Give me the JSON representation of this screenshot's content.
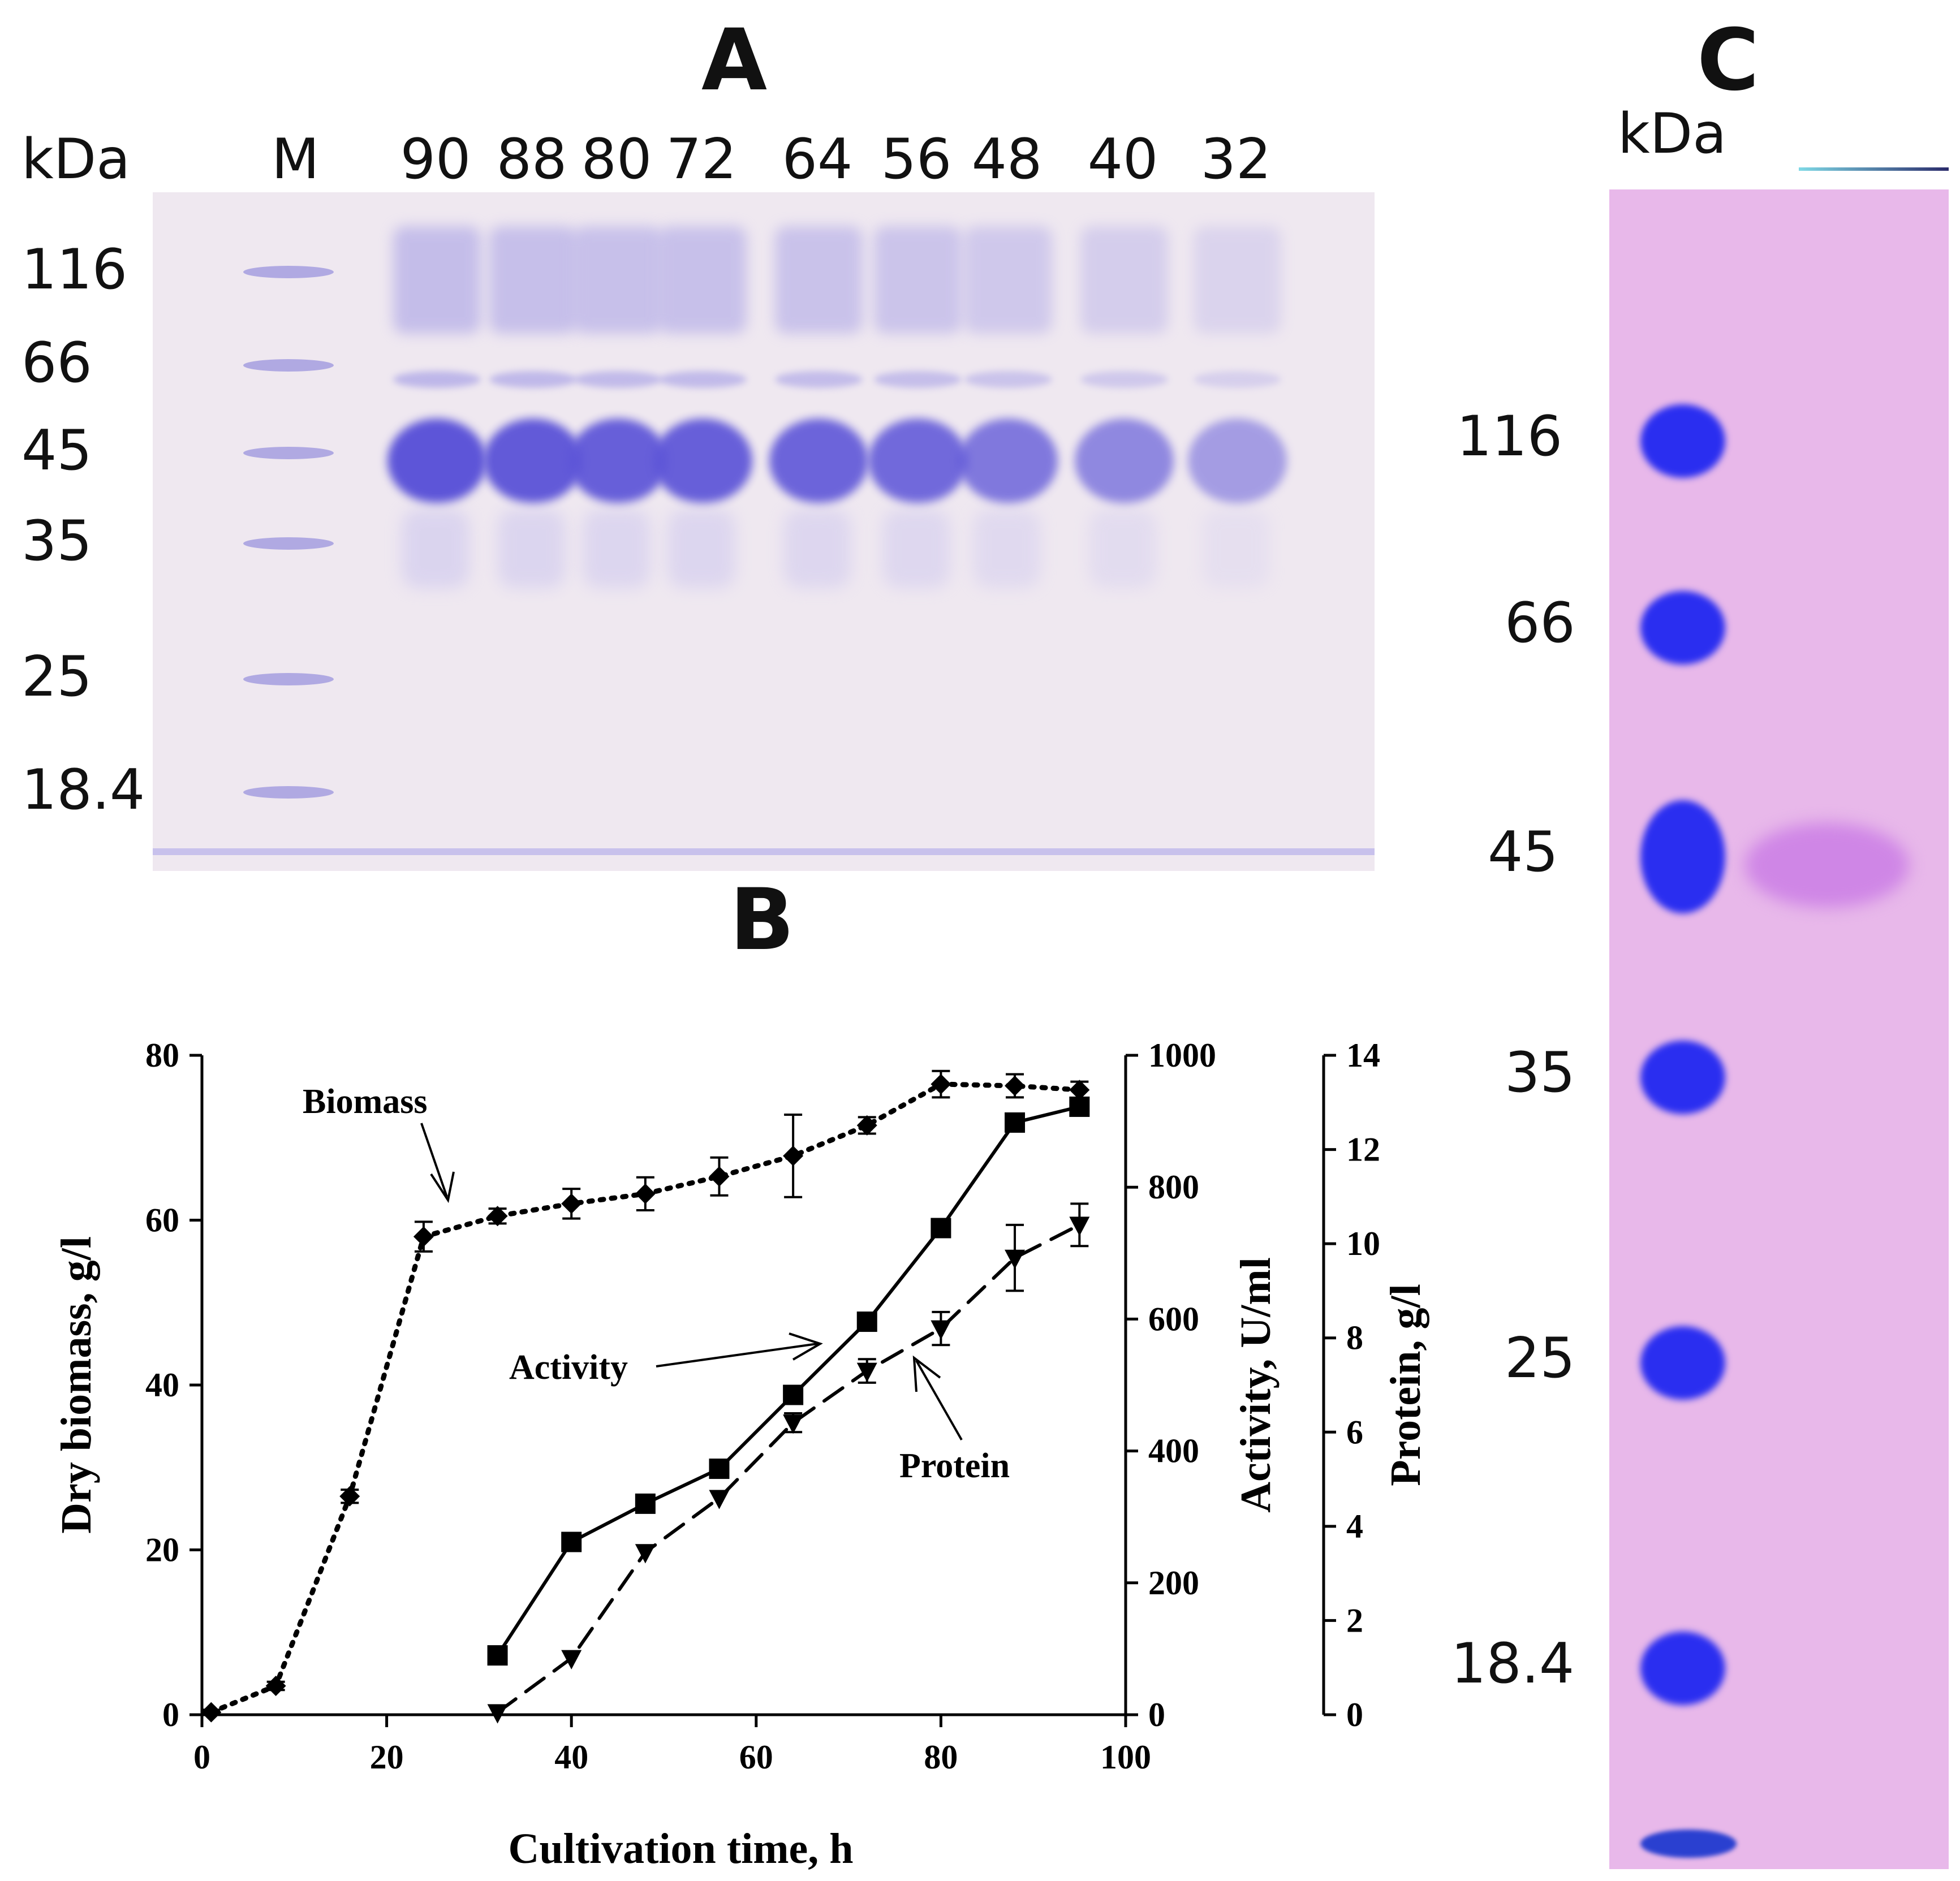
{
  "panels": {
    "a": "A",
    "b": "B",
    "c": "C"
  },
  "gel_a": {
    "kda_label": "kDa",
    "marker_lane_label": "M",
    "lane_labels": [
      "90",
      "88",
      "80",
      "72",
      "64",
      "56",
      "48",
      "40",
      "32"
    ],
    "marker_sizes": [
      "116",
      "66",
      "45",
      "35",
      "25",
      "18.4"
    ],
    "colors": {
      "background": "#efe8f0",
      "band": "#5d55d8",
      "faint": "#a9a2e6"
    }
  },
  "gel_c": {
    "kda_label": "kDa",
    "marker_sizes": [
      "116",
      "66",
      "45",
      "35",
      "25",
      "18.4"
    ],
    "colors": {
      "background": "#e8b8ea",
      "marker": "#2a2ef0",
      "sample": "#cf86e6"
    }
  },
  "chart_data": {
    "type": "line",
    "xlabel": "Cultivation time, h",
    "xlim": [
      0,
      100
    ],
    "xticks": [
      "0",
      "20",
      "40",
      "60",
      "80",
      "100"
    ],
    "axes": {
      "left": {
        "label": "Dry biomass, g/l",
        "lim": [
          0,
          80
        ],
        "ticks": [
          "0",
          "20",
          "40",
          "60",
          "80"
        ]
      },
      "right1": {
        "label": "Activity, U/ml",
        "lim": [
          0,
          1000
        ],
        "ticks": [
          "0",
          "200",
          "400",
          "600",
          "800",
          "1000"
        ]
      },
      "right2": {
        "label": "Protein, g/l",
        "lim": [
          0,
          14
        ],
        "ticks": [
          "0",
          "2",
          "4",
          "6",
          "8",
          "10",
          "12",
          "14"
        ]
      }
    },
    "series": [
      {
        "name": "Biomass",
        "axis": "left",
        "style": "dotted",
        "marker": "diamond",
        "x": [
          1,
          8,
          16,
          24,
          32,
          40,
          48,
          56,
          64,
          72,
          80,
          88,
          95
        ],
        "y": [
          0.3,
          3.5,
          26.5,
          58,
          60.5,
          62,
          63.2,
          65.3,
          67.8,
          71.5,
          76.5,
          76.3,
          75.8
        ],
        "err": [
          0.3,
          0.5,
          0.8,
          1.8,
          0.9,
          1.8,
          2.0,
          2.3,
          5.0,
          1.0,
          1.6,
          1.4,
          1.0
        ]
      },
      {
        "name": "Activity",
        "axis": "right1",
        "style": "solid",
        "marker": "square",
        "x": [
          32,
          40,
          48,
          56,
          64,
          72,
          80,
          88,
          95
        ],
        "y": [
          90,
          262,
          320,
          373,
          485,
          596,
          738,
          898,
          922
        ],
        "err": [
          0,
          0,
          0,
          0,
          10,
          10,
          12,
          12,
          12
        ]
      },
      {
        "name": "Protein",
        "axis": "right2",
        "style": "dashed",
        "marker": "triangle-down",
        "x": [
          32,
          40,
          48,
          56,
          64,
          72,
          80,
          88,
          95
        ],
        "y": [
          0.05,
          1.2,
          3.45,
          4.6,
          6.2,
          7.3,
          8.2,
          9.7,
          10.4
        ],
        "err": [
          0,
          0,
          0,
          0,
          0.2,
          0.25,
          0.35,
          0.7,
          0.45
        ]
      }
    ],
    "annotations": [
      "Biomass",
      "Activity",
      "Protein"
    ]
  }
}
